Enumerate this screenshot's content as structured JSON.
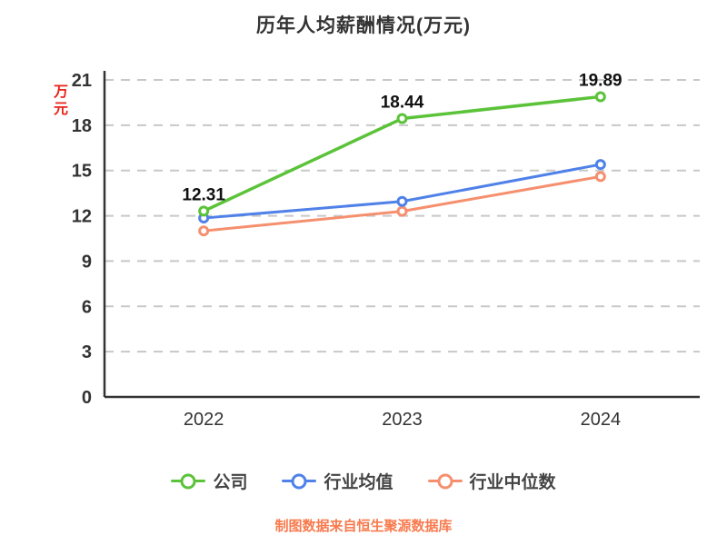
{
  "chart_data": {
    "type": "line",
    "title": "历年人均薪酬情况(万元)",
    "unit_label": "万元",
    "source_note": "制图数据来自恒生聚源数据库",
    "categories": [
      "2022",
      "2023",
      "2024"
    ],
    "ylim": [
      0,
      21
    ],
    "ytick_step": 3,
    "yticks": [
      0,
      3,
      6,
      9,
      12,
      15,
      18,
      21
    ],
    "grid": "dashed-horizontal",
    "legend_position": "bottom",
    "series": [
      {
        "id": "company",
        "name": "公司",
        "color": "#5bc339",
        "values": [
          12.31,
          18.44,
          19.89
        ],
        "show_labels": true,
        "labels": [
          "12.31",
          "18.44",
          "19.89"
        ]
      },
      {
        "id": "industry-mean",
        "name": "行业均值",
        "color": "#4f81e8",
        "values": [
          11.85,
          12.95,
          15.4
        ],
        "show_labels": false,
        "labels": []
      },
      {
        "id": "industry-median",
        "name": "行业中位数",
        "color": "#f58f6e",
        "values": [
          11.0,
          12.3,
          14.6
        ],
        "show_labels": false,
        "labels": []
      }
    ],
    "colors": {
      "title": "#333333",
      "axis": "#333333",
      "gridline": "#c8c8c8",
      "tick_label": "#333333",
      "data_label": "#111111",
      "unit_label": "#e8231a",
      "source_note": "#f87a4e"
    }
  }
}
